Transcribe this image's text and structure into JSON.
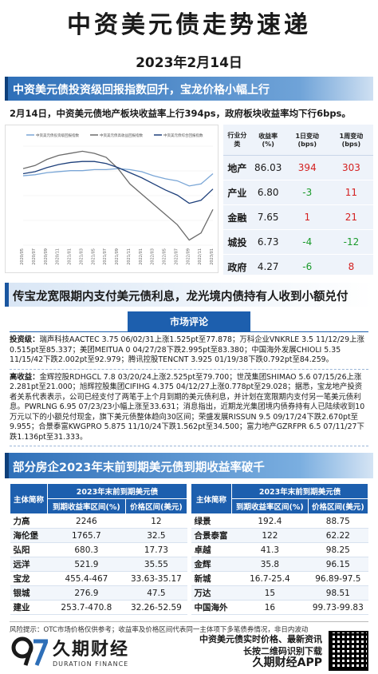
{
  "header": {
    "title": "中资美元债走势速递",
    "date": "2023年2月14日"
  },
  "section1": {
    "banner": "中资美元债投资级回报指数回升，宝龙价格小幅上行",
    "summary": "2月14日，中资美元债地产板块收益率上行394ps，政府板块收益率均下行6bps。"
  },
  "chart_data": {
    "type": "line",
    "legend": [
      "中资美元债投资级回报指数",
      "中资美元债高收益回报指数",
      "中资美元债综合回报指数"
    ],
    "x": [
      "2020/05",
      "2020/07",
      "2020/09",
      "2020/11",
      "2021/01",
      "2021/03",
      "2021/05",
      "2021/07",
      "2021/09",
      "2021/11",
      "2022/01",
      "2022/03",
      "2022/05",
      "2022/07",
      "2022/09",
      "2022/11",
      "2023/01"
    ],
    "series": [
      {
        "name": "中资美元债投资级回报指数",
        "color": "#7aa6d6",
        "values": [
          208,
          209,
          211,
          212,
          213,
          213,
          214,
          214,
          215,
          214,
          212,
          208,
          205,
          203,
          198,
          200,
          210
        ]
      },
      {
        "name": "中资美元债高收益回报指数",
        "color": "#6b6b6b",
        "values": [
          215,
          218,
          224,
          228,
          230,
          232,
          230,
          226,
          215,
          200,
          190,
          180,
          170,
          160,
          145,
          152,
          175
        ]
      },
      {
        "name": "中资美元债综合回报指数",
        "color": "#1d3f7a",
        "values": [
          210,
          212,
          216,
          219,
          221,
          222,
          222,
          220,
          216,
          211,
          206,
          200,
          194,
          189,
          181,
          184,
          195
        ]
      }
    ]
  },
  "sector_table": {
    "headers": [
      "行业分类",
      "收益率(%)",
      "1日变动(bps)",
      "1周变动(bps)"
    ],
    "rows": [
      {
        "name": "地产",
        "yield": "86.03",
        "d1": "394",
        "w1": "303",
        "d1_sign": "pos",
        "w1_sign": "pos"
      },
      {
        "name": "产业",
        "yield": "6.80",
        "d1": "-3",
        "w1": "11",
        "d1_sign": "neg",
        "w1_sign": "pos"
      },
      {
        "name": "金融",
        "yield": "7.65",
        "d1": "1",
        "w1": "21",
        "d1_sign": "pos",
        "w1_sign": "pos"
      },
      {
        "name": "城投",
        "yield": "6.73",
        "d1": "-4",
        "w1": "-12",
        "d1_sign": "neg",
        "w1_sign": "neg"
      },
      {
        "name": "政府",
        "yield": "4.27",
        "d1": "-6",
        "w1": "8",
        "d1_sign": "neg",
        "w1_sign": "pos"
      }
    ]
  },
  "section2": {
    "banner": "传宝龙宽限期内支付美元债利息，龙光境内债持有人收到小额兑付"
  },
  "commentary": {
    "title": "市场评论",
    "ig_label": "投资级：",
    "ig_text": "瑞声科技AACTEC 3.75 06/02/31上涨1.525pt至77.878；万科企业VNKRLE 3.5 11/12/29上涨0.515pt至85.337；美团MEITUA 0 04/27/28下跌2.995pt至83.380；中国海外发展CHIOLI 5.35 11/15/42下跌2.002pt至92.979；腾讯控股TENCNT 3.925 01/19/38下跌0.792pt至84.259。",
    "hy_label": "高收益：",
    "hy_text": "金辉控股RDHGCL 7.8 03/20/24上涨2.525pt至79.700；世茂集团SHIMAO 5.6 07/15/26上涨2.281pt至21.000；旭辉控股集团CIFIHG 4.375 04/12/27上涨0.778pt至29.028；据悉，宝龙地产投资者关系代表表示，公司已经支付了两笔于上个月到期的美元债利息，并计划在宽限期内支付另一笔美元债利息。PWRLNG 6.95 07/23/23小幅上涨至33.631；消息指出，近期龙光集团境内债券持有人已陆续收到10万元以下的小额兑付现金，旗下美元债整体趋向30区间；荣盛发展RISSUN 9.5 09/17/24下跌2.670pt至9.955；合景泰富KWGPRO 5.875 11/10/24下跌1.562pt至34.500；富力地产GZRFPR 6.5 07/11/27下跌1.136pt至31.333。"
  },
  "section3": {
    "banner": "部分房企2023年末前到期美元债到期收益率破千"
  },
  "maturity": {
    "group_header": "2023年末前到期美元债",
    "col_name": "主体简称",
    "col_range": "到期收益率区间(%)",
    "col_price": "价格区间(美元)",
    "left": [
      {
        "name": "力高",
        "yield": "2246",
        "price": "12"
      },
      {
        "name": "海伦堡",
        "yield": "1765.7",
        "price": "32.5"
      },
      {
        "name": "弘阳",
        "yield": "680.3",
        "price": "17.73"
      },
      {
        "name": "远洋",
        "yield": "521.9",
        "price": "35.55"
      },
      {
        "name": "宝龙",
        "yield": "455.4-467",
        "price": "33.63-35.17"
      },
      {
        "name": "银城",
        "yield": "276.9",
        "price": "47.5"
      },
      {
        "name": "建业",
        "yield": "253.7-470.8",
        "price": "32.26-52.59"
      }
    ],
    "right": [
      {
        "name": "绿景",
        "yield": "192.4",
        "price": "88.75"
      },
      {
        "name": "合景泰富",
        "yield": "122",
        "price": "62.22"
      },
      {
        "name": "卓越",
        "yield": "41.3",
        "price": "98.25"
      },
      {
        "name": "金辉",
        "yield": "35.8",
        "price": "96.15"
      },
      {
        "name": "新城",
        "yield": "16.7-25.4",
        "price": "96.89-97.5"
      },
      {
        "name": "万达",
        "yield": "15",
        "price": "98.51"
      },
      {
        "name": "中国海外",
        "yield": "16",
        "price": "99.73-99.83"
      }
    ]
  },
  "notice": "风险提示：OTC市场价格仅供参考；收益率及价格区间代表同一主体项下多笔债券情况，非日内波动",
  "footer": {
    "logo_cn": "久期财经",
    "logo_en": "DURATION FINANCE",
    "promo_line1": "中资美元债实时价格、最新资讯",
    "promo_line2": "长按二维码识别下载",
    "promo_app": "久期财经APP"
  }
}
